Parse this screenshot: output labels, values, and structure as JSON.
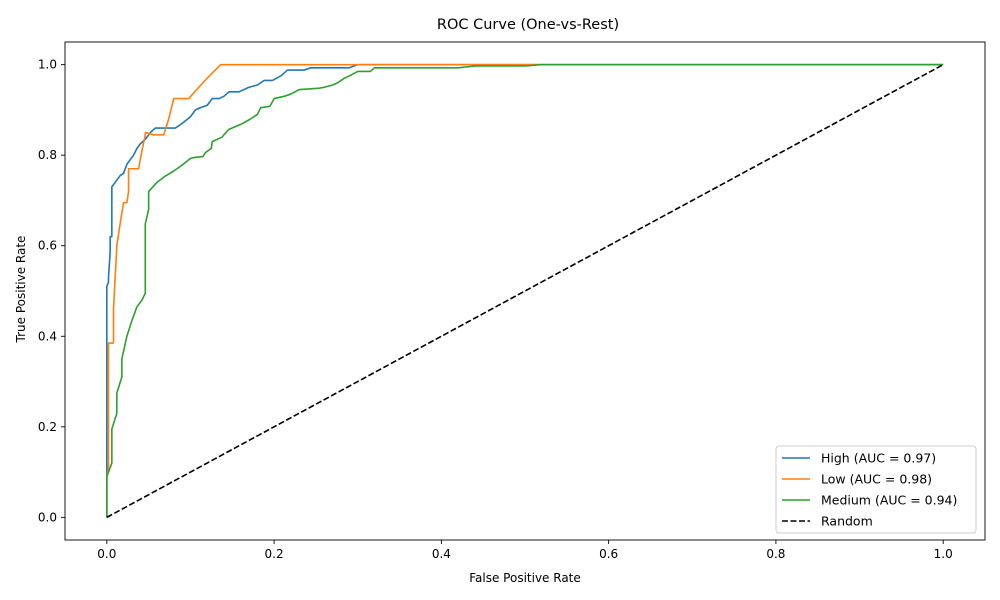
{
  "chart_data": {
    "type": "line",
    "title": "ROC Curve (One-vs-Rest)",
    "xlabel": "False Positive Rate",
    "ylabel": "True Positive Rate",
    "xlim": [
      -0.05,
      1.05
    ],
    "ylim": [
      -0.05,
      1.05
    ],
    "xticks": [
      "0.0",
      "0.2",
      "0.4",
      "0.6",
      "0.8",
      "1.0"
    ],
    "yticks": [
      "0.0",
      "0.2",
      "0.4",
      "0.6",
      "0.8",
      "1.0"
    ],
    "grid": false,
    "legend_position": "bottom-right",
    "series": [
      {
        "name": "High (AUC = 0.97)",
        "color": "#1f77b4",
        "style": "solid",
        "x": [
          0,
          0,
          0.002,
          0.002,
          0.004,
          0.004,
          0.006,
          0.006,
          0.008,
          0.012,
          0.016,
          0.02,
          0.024,
          0.028,
          0.032,
          0.036,
          0.04,
          0.046,
          0.052,
          0.058,
          0.064,
          0.07,
          0.076,
          0.082,
          0.09,
          0.1,
          0.106,
          0.112,
          0.12,
          0.126,
          0.134,
          0.14,
          0.146,
          0.158,
          0.17,
          0.18,
          0.188,
          0.198,
          0.208,
          0.216,
          0.228,
          0.236,
          0.244,
          0.26,
          0.28,
          0.29,
          0.3,
          0.4,
          0.5,
          0.6,
          0.7,
          0.8,
          0.9,
          1.0
        ],
        "y": [
          0,
          0.51,
          0.52,
          0.53,
          0.585,
          0.62,
          0.62,
          0.73,
          0.735,
          0.745,
          0.755,
          0.76,
          0.78,
          0.79,
          0.8,
          0.815,
          0.825,
          0.835,
          0.85,
          0.86,
          0.86,
          0.86,
          0.86,
          0.86,
          0.87,
          0.885,
          0.9,
          0.905,
          0.91,
          0.925,
          0.925,
          0.93,
          0.94,
          0.94,
          0.95,
          0.955,
          0.965,
          0.965,
          0.975,
          0.988,
          0.988,
          0.988,
          0.993,
          0.993,
          0.993,
          0.993,
          1.0,
          1.0,
          1.0,
          1.0,
          1.0,
          1.0,
          1.0,
          1.0
        ]
      },
      {
        "name": "Low (AUC = 0.98)",
        "color": "#ff7f0e",
        "style": "solid",
        "x": [
          0,
          0,
          0.002,
          0.002,
          0.008,
          0.008,
          0.012,
          0.016,
          0.02,
          0.024,
          0.026,
          0.026,
          0.038,
          0.042,
          0.046,
          0.046,
          0.056,
          0.068,
          0.074,
          0.08,
          0.098,
          0.11,
          0.12,
          0.136,
          0.2,
          0.3,
          0.4,
          0.5,
          0.6,
          0.7,
          0.8,
          0.9,
          1.0
        ],
        "y": [
          0,
          0.09,
          0.11,
          0.385,
          0.385,
          0.46,
          0.6,
          0.65,
          0.695,
          0.695,
          0.72,
          0.77,
          0.77,
          0.81,
          0.845,
          0.85,
          0.845,
          0.845,
          0.88,
          0.925,
          0.925,
          0.95,
          0.97,
          1.0,
          1.0,
          1.0,
          1.0,
          1.0,
          1.0,
          1.0,
          1.0,
          1.0,
          1.0
        ]
      },
      {
        "name": "Medium (AUC = 0.94)",
        "color": "#2ca02c",
        "style": "solid",
        "x": [
          0,
          0,
          0.006,
          0.006,
          0.012,
          0.012,
          0.018,
          0.018,
          0.024,
          0.03,
          0.036,
          0.042,
          0.046,
          0.046,
          0.05,
          0.05,
          0.06,
          0.07,
          0.08,
          0.09,
          0.1,
          0.105,
          0.115,
          0.118,
          0.125,
          0.126,
          0.138,
          0.14,
          0.146,
          0.16,
          0.17,
          0.18,
          0.184,
          0.195,
          0.2,
          0.212,
          0.22,
          0.23,
          0.24,
          0.254,
          0.26,
          0.27,
          0.276,
          0.284,
          0.29,
          0.3,
          0.315,
          0.32,
          0.33,
          0.42,
          0.44,
          0.5,
          0.52,
          0.6,
          0.7,
          0.8,
          0.9,
          1.0
        ],
        "y": [
          0,
          0.09,
          0.12,
          0.195,
          0.23,
          0.275,
          0.31,
          0.35,
          0.4,
          0.435,
          0.465,
          0.48,
          0.495,
          0.648,
          0.68,
          0.72,
          0.74,
          0.754,
          0.765,
          0.778,
          0.793,
          0.795,
          0.797,
          0.806,
          0.815,
          0.83,
          0.84,
          0.845,
          0.857,
          0.868,
          0.878,
          0.89,
          0.905,
          0.908,
          0.925,
          0.93,
          0.935,
          0.945,
          0.946,
          0.948,
          0.95,
          0.955,
          0.96,
          0.97,
          0.975,
          0.985,
          0.985,
          0.993,
          0.993,
          0.993,
          0.997,
          0.997,
          1.0,
          1.0,
          1.0,
          1.0,
          1.0,
          1.0
        ]
      },
      {
        "name": "Random",
        "color": "#000000",
        "style": "dashed",
        "x": [
          0,
          1
        ],
        "y": [
          0,
          1
        ]
      }
    ]
  }
}
